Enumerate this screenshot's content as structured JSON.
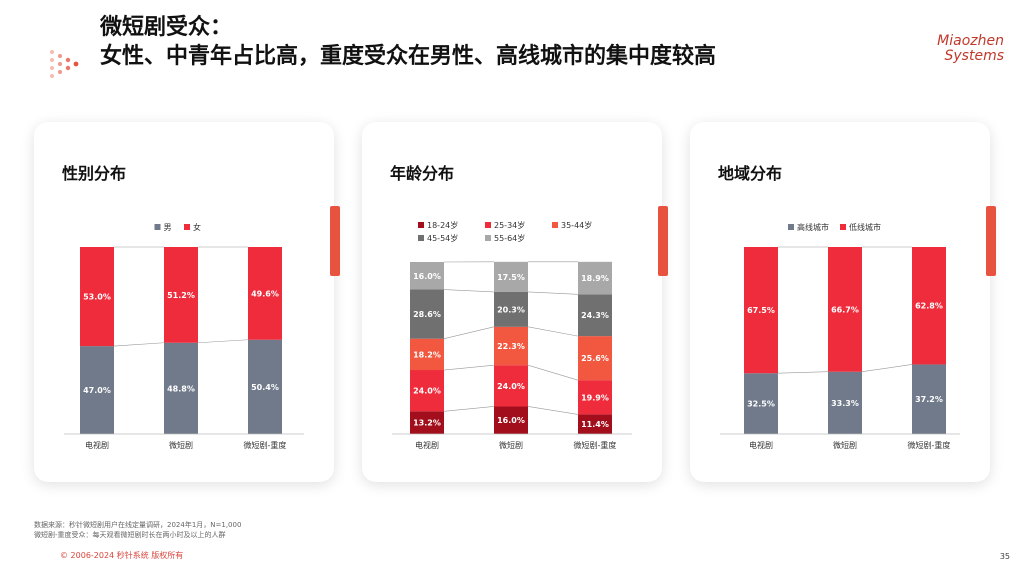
{
  "header": {
    "title_line1": "微短剧受众：",
    "title_line2": "女性、中青年占比高，重度受众在男性、高线城市的集中度较高"
  },
  "logo": {
    "line1": "Miaozhen",
    "line2": "Systems"
  },
  "colors": {
    "male": "#707a8a",
    "female": "#ee2c3c",
    "age_18_24": "#a30e1c",
    "age_25_34": "#ee2c3c",
    "age_35_44": "#f2573f",
    "age_45_54": "#707070",
    "age_55_64": "#a8a8a8",
    "high_tier": "#707a8a",
    "low_tier": "#ee2c3c",
    "accent": "#e8533f"
  },
  "chart_data": [
    {
      "type": "bar",
      "stacked": true,
      "title": "性别分布",
      "categories": [
        "电视剧",
        "微短剧",
        "微短剧-重度"
      ],
      "series": [
        {
          "name": "男",
          "values": [
            47.0,
            48.8,
            50.4
          ]
        },
        {
          "name": "女",
          "values": [
            53.0,
            51.2,
            49.6
          ]
        }
      ],
      "legend_position": "top-center",
      "ylim": [
        0,
        100
      ]
    },
    {
      "type": "bar",
      "stacked": true,
      "title": "年龄分布",
      "categories": [
        "电视剧",
        "微短剧",
        "微短剧-重度"
      ],
      "series": [
        {
          "name": "18-24岁",
          "values": [
            13.2,
            16.0,
            11.4
          ]
        },
        {
          "name": "25-34岁",
          "values": [
            24.0,
            24.0,
            19.9
          ]
        },
        {
          "name": "35-44岁",
          "values": [
            18.2,
            22.3,
            25.6
          ]
        },
        {
          "name": "45-54岁",
          "values": [
            28.6,
            20.3,
            24.3
          ]
        },
        {
          "name": "55-64岁",
          "values": [
            16.0,
            17.5,
            18.9
          ]
        }
      ],
      "legend_position": "top-center",
      "ylim": [
        0,
        100
      ]
    },
    {
      "type": "bar",
      "stacked": true,
      "title": "地域分布",
      "categories": [
        "电视剧",
        "微短剧",
        "微短剧-重度"
      ],
      "series": [
        {
          "name": "高线城市",
          "values": [
            32.5,
            33.3,
            37.2
          ]
        },
        {
          "name": "低线城市",
          "values": [
            67.5,
            66.7,
            62.8
          ]
        }
      ],
      "legend_position": "top-center",
      "ylim": [
        0,
        100
      ]
    }
  ],
  "footnote": {
    "line1": "数据来源：秒针微短剧用户在线定量调研，2024年1月，N=1,000",
    "line2": "微短剧-重度受众：每天观看微短剧时长在两小时及以上的人群"
  },
  "copyright": "© 2006-2024 秒针系统 版权所有",
  "page_number": "35"
}
